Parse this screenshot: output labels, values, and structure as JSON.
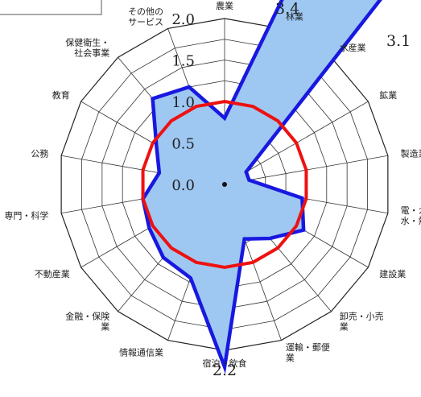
{
  "chart_data": {
    "type": "radar",
    "categories": [
      "農業",
      "林業",
      "水産業",
      "鉱業",
      "製造業",
      "電・ガス・水・熱",
      "建設業",
      "卸売・小売業",
      "運輸・郵便業",
      "宿泊・飲食",
      "情報通信業",
      "金融・保険業",
      "不動産業",
      "専門・科学",
      "公務",
      "教育",
      "保健衛生・社会事業",
      "その他のサービス"
    ],
    "category_labels": [
      [
        "農業"
      ],
      [
        "林業"
      ],
      [
        "水産業"
      ],
      [
        "鉱業"
      ],
      [
        "製造業"
      ],
      [
        "電・ガ",
        "水・熱"
      ],
      [
        "建設業"
      ],
      [
        "卸売・小売",
        "業"
      ],
      [
        "運輸・郵便",
        "業"
      ],
      [
        "宿泊・飲食"
      ],
      [
        "情報通信業"
      ],
      [
        "金融・保険",
        "業"
      ],
      [
        "不動産業"
      ],
      [
        "専門・科学"
      ],
      [
        "公務"
      ],
      [
        "教育"
      ],
      [
        "保健衛生・",
        "社会事業"
      ],
      [
        "その他の",
        "サービス"
      ]
    ],
    "series": [
      {
        "values": [
          0.8,
          3.4,
          3.1,
          0.3,
          0.3,
          0.95,
          1.1,
          0.85,
          0.7,
          2.2,
          1.2,
          1.15,
          1.05,
          1.0,
          0.8,
          0.95,
          1.35,
          1.25
        ],
        "color": "#1818e0",
        "fill": "#9ec8f2"
      },
      {
        "values": [
          1.0,
          1.0,
          1.0,
          1.0,
          1.0,
          1.0,
          1.0,
          1.0,
          1.0,
          1.0,
          1.0,
          1.0,
          1.0,
          1.0,
          1.0,
          1.0,
          1.0,
          1.0
        ],
        "color": "#ee1111"
      }
    ],
    "r_ticks": [
      "0.0",
      "0.5",
      "1.0",
      "1.5",
      "2.0"
    ],
    "r_range": [
      0,
      2.0
    ],
    "off_scale_labels": [
      {
        "category": "林業",
        "text": "3.4"
      },
      {
        "category": "水産業",
        "text": "3.1"
      },
      {
        "category": "宿泊・飲食",
        "text": "2.2"
      }
    ],
    "grid": true
  }
}
